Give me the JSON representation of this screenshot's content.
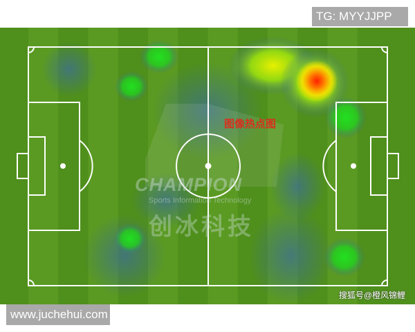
{
  "overlay_tag": "TG: MYYJJPP",
  "site_watermark": "www.juchehui.com",
  "credit": "搜狐号@橙风锦鲤",
  "heatmap_title": "图像热点图",
  "logo": {
    "name": "CHAMPION",
    "subtitle": "Sports Information Technology",
    "chinese": "创冰科技"
  },
  "colors": {
    "pitch": "#4f8f1c",
    "stripe": "#5a9a22",
    "hot": "#ff2a00",
    "warm": "#ffee00",
    "mild": "#22dd22",
    "cool": "#3a6a88"
  }
}
